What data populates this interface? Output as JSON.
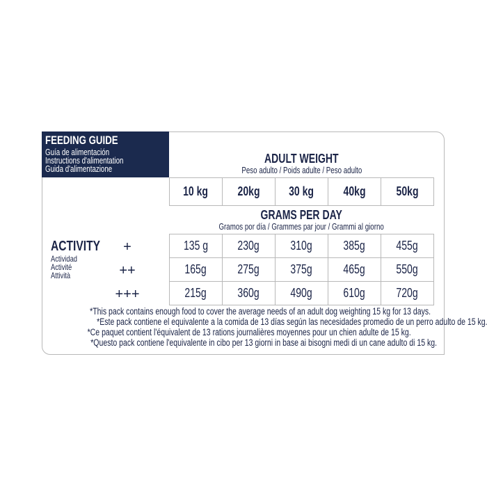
{
  "guide": {
    "title": "FEEDING GUIDE",
    "subtitles": [
      "Guía de alimentación",
      "Instructions d'alimentation",
      "Guida d'alimentazione"
    ]
  },
  "adult_weight": {
    "title": "ADULT WEIGHT",
    "subtitle": "Peso adulto / Poids adulte / Peso adulto"
  },
  "weights": [
    "10 kg",
    "20kg",
    "30 kg",
    "40kg",
    "50kg"
  ],
  "grams_per_day": {
    "title": "GRAMS PER DAY",
    "subtitle": "Gramos por día / Grammes par jour / Grammi al giorno"
  },
  "activity": {
    "title": "ACTIVITY",
    "subtitles": [
      "Actividad",
      "Activité",
      "Attività"
    ]
  },
  "rows": [
    {
      "level": "+",
      "values": [
        "135 g",
        "230g",
        "310g",
        "385g",
        "455g"
      ]
    },
    {
      "level": "++",
      "values": [
        "165g",
        "275g",
        "375g",
        "465g",
        "550g"
      ]
    },
    {
      "level": "+++",
      "values": [
        "215g",
        "360g",
        "490g",
        "610g",
        "720g"
      ]
    }
  ],
  "footnotes": [
    "*This pack contains enough food to cover the average needs of an adult dog weighting 15 kg for 13 days.",
    "*Este pack contiene el equivalente a la comida de 13 días según las necesidades promedio de un perro adulto de 15 kg.",
    "*Ce paquet contient l'équivalent de 13 rations journalières moyennes pour un chien adulte de 15 kg.",
    "*Questo pack contiene l'equivalente in cibo per 13 giorni in base ai bisogni medi di un cane adulto di 15 kg."
  ],
  "colors": {
    "navy": "#1b2a4e",
    "border": "#b8b8b8"
  }
}
